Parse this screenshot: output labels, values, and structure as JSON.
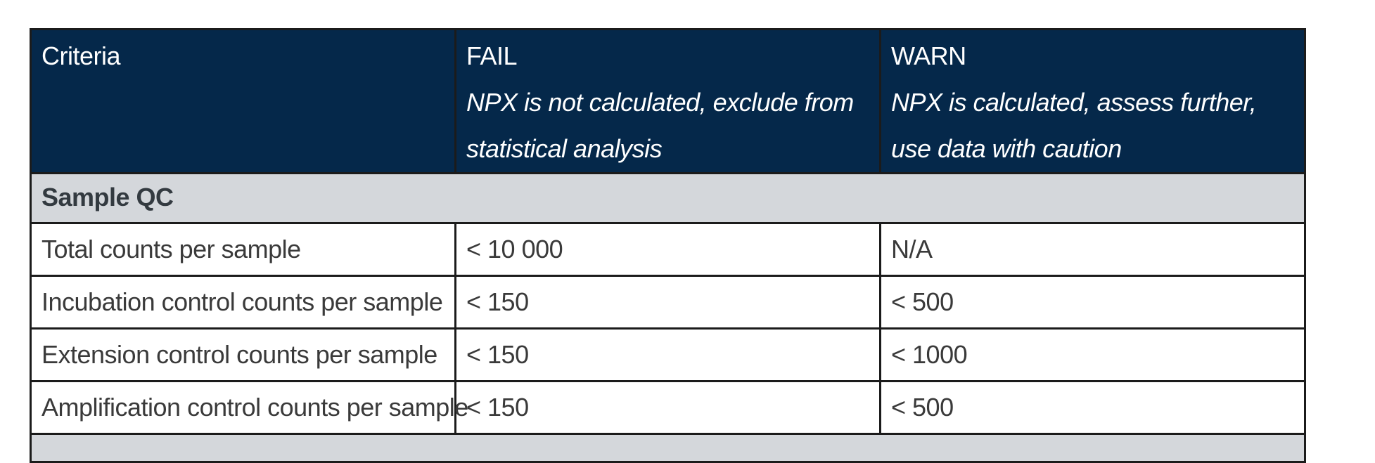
{
  "table": {
    "headers": [
      {
        "title": "Criteria",
        "subtitle": ""
      },
      {
        "title": "FAIL",
        "subtitle": "NPX is not calculated, exclude from statistical analysis"
      },
      {
        "title": "WARN",
        "subtitle": "NPX is calculated, assess further, use data with caution"
      }
    ],
    "section": "Sample QC",
    "rows": [
      {
        "criteria": "Total counts per sample",
        "fail": "< 10 000",
        "warn": "N/A"
      },
      {
        "criteria": "Incubation control counts per sample",
        "fail": "< 150",
        "warn": "< 500"
      },
      {
        "criteria": "Extension control counts per sample",
        "fail": "< 150",
        "warn": "< 1000"
      },
      {
        "criteria": "Amplification control counts per sample",
        "fail": "< 150",
        "warn": "< 500"
      }
    ]
  },
  "colors": {
    "header_bg": "#05284a",
    "section_bg": "#d4d7db",
    "border": "#1b1b1b"
  }
}
